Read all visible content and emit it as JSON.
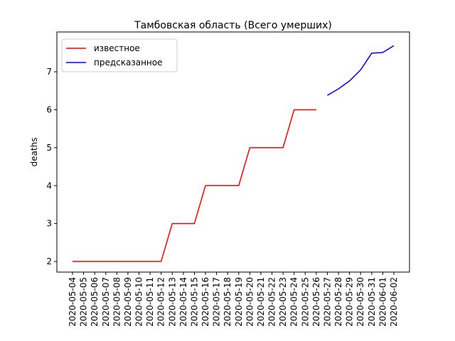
{
  "chart_data": {
    "type": "line",
    "title": "Тамбовская область (Всего умерших)",
    "y_label": "deaths",
    "categories": [
      "2020-05-04",
      "2020-05-05",
      "2020-05-06",
      "2020-05-07",
      "2020-05-08",
      "2020-05-09",
      "2020-05-10",
      "2020-05-11",
      "2020-05-12",
      "2020-05-13",
      "2020-05-14",
      "2020-05-15",
      "2020-05-16",
      "2020-05-17",
      "2020-05-18",
      "2020-05-19",
      "2020-05-20",
      "2020-05-21",
      "2020-05-22",
      "2020-05-23",
      "2020-05-24",
      "2020-05-25",
      "2020-05-26",
      "2020-05-27",
      "2020-05-28",
      "2020-05-29",
      "2020-05-30",
      "2020-05-31",
      "2020-06-01",
      "2020-06-02"
    ],
    "series": [
      {
        "name": "известное",
        "color": "#ff0000",
        "values": [
          2,
          2,
          2,
          2,
          2,
          2,
          2,
          2,
          2,
          3,
          3,
          3,
          4,
          4,
          4,
          4,
          5,
          5,
          5,
          5,
          6,
          6,
          6,
          null,
          null,
          null,
          null,
          null,
          null,
          null
        ]
      },
      {
        "name": "предсказанное",
        "color": "#0000ff",
        "values": [
          null,
          null,
          null,
          null,
          null,
          null,
          null,
          null,
          null,
          null,
          null,
          null,
          null,
          null,
          null,
          null,
          null,
          null,
          null,
          null,
          null,
          null,
          null,
          6.38,
          6.55,
          6.76,
          7.05,
          7.49,
          7.51,
          7.69
        ]
      }
    ],
    "ylim": [
      1.72,
      8.05
    ],
    "yticks": [
      2,
      3,
      4,
      5,
      6,
      7
    ],
    "legend": "upper left",
    "grid": false
  }
}
